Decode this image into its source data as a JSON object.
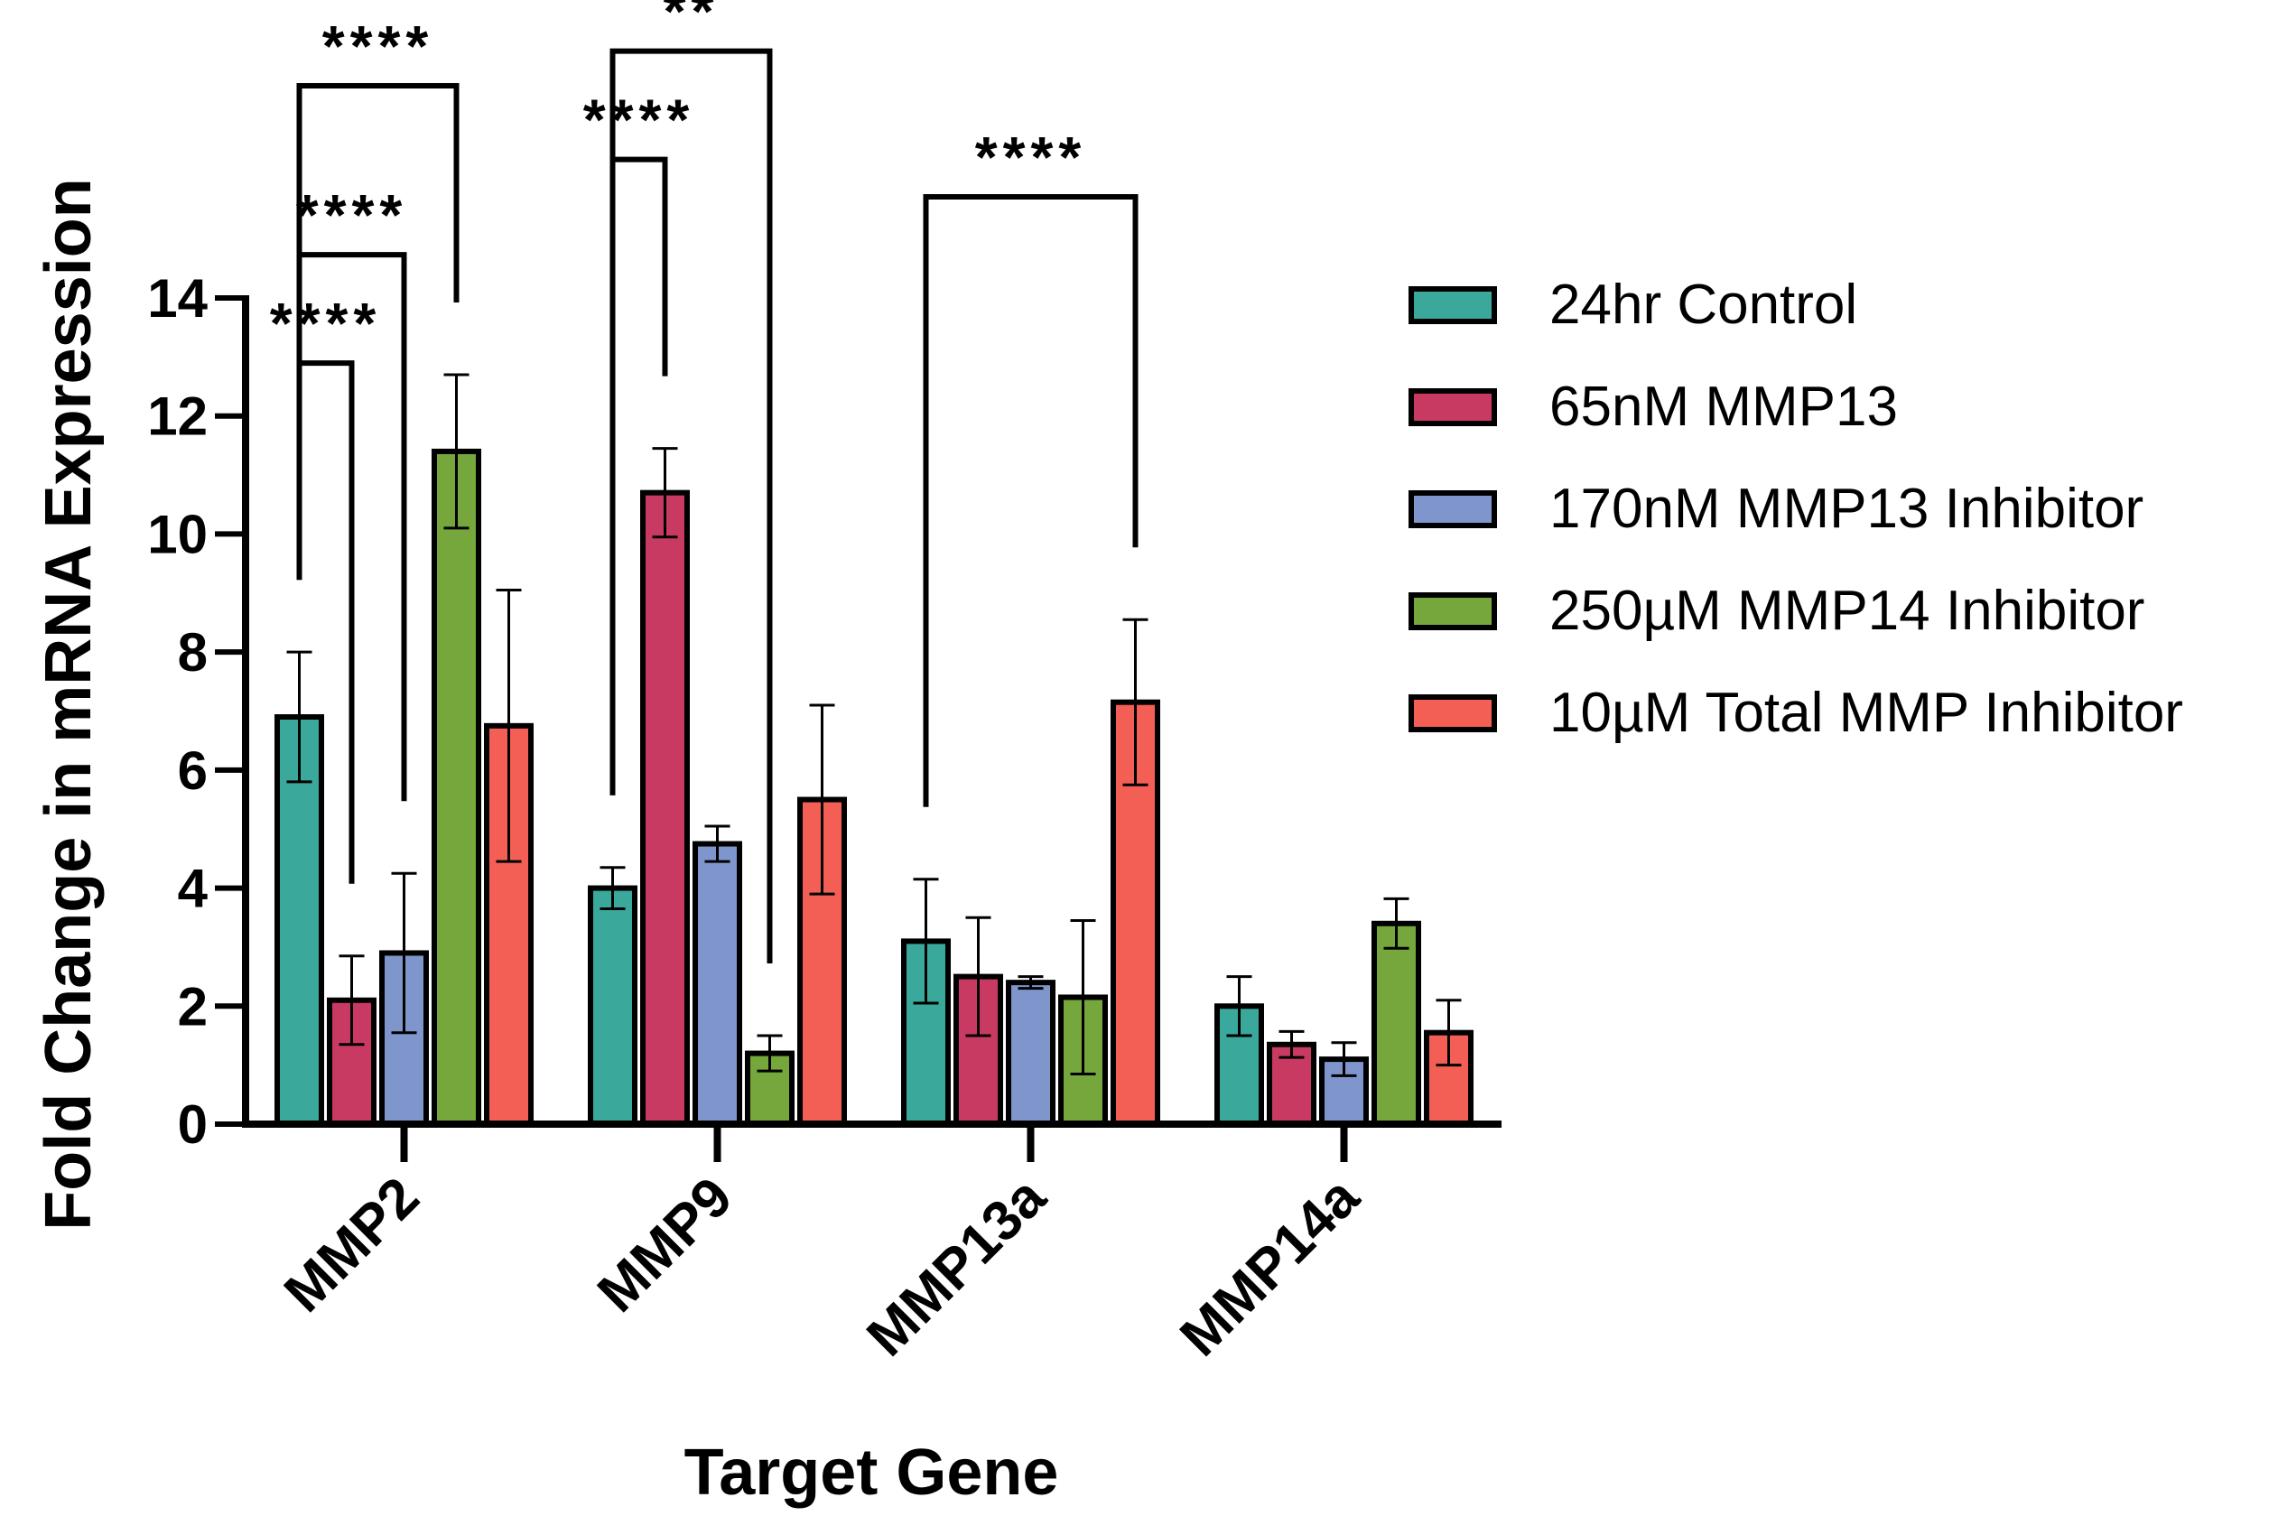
{
  "chart_data": {
    "type": "bar",
    "title": "",
    "xlabel": "Target Gene",
    "ylabel": "Fold Change in mRNA Expression",
    "ylim": [
      0,
      14
    ],
    "yticks": [
      "0",
      "2",
      "4",
      "6",
      "8",
      "10",
      "12",
      "14"
    ],
    "categories": [
      "MMP2",
      "MMP9",
      "MMP13a",
      "MMP14a"
    ],
    "legend_position": "right",
    "series": [
      {
        "name": "24hr Control",
        "color": "#3aa99b",
        "values": [
          6.9,
          4.0,
          3.1,
          2.0
        ],
        "errors": [
          1.1,
          0.35,
          1.05,
          0.5
        ]
      },
      {
        "name": "65nM MMP13",
        "color": "#c93a62",
        "values": [
          2.1,
          10.7,
          2.5,
          1.35
        ],
        "errors": [
          0.75,
          0.75,
          1.0,
          0.22
        ]
      },
      {
        "name": "170nM MMP13 Inhibitor",
        "color": "#7f96cc",
        "values": [
          2.9,
          4.75,
          2.4,
          1.1
        ],
        "errors": [
          1.35,
          0.3,
          0.1,
          0.28
        ]
      },
      {
        "name": "250µM MMP14 Inhibitor",
        "color": "#76a73c",
        "values": [
          11.4,
          1.2,
          2.15,
          3.4
        ],
        "errors": [
          1.3,
          0.3,
          1.3,
          0.42
        ]
      },
      {
        "name": "10µM Total MMP Inhibitor",
        "color": "#f45f55",
        "values": [
          6.75,
          5.5,
          7.15,
          1.55
        ],
        "errors": [
          2.3,
          1.6,
          1.4,
          0.55
        ]
      }
    ],
    "significance": [
      {
        "category": 0,
        "from": 0,
        "to": 1,
        "label": "****"
      },
      {
        "category": 0,
        "from": 0,
        "to": 2,
        "label": "****"
      },
      {
        "category": 0,
        "from": 0,
        "to": 3,
        "label": "****"
      },
      {
        "category": 1,
        "from": 0,
        "to": 1,
        "label": "****"
      },
      {
        "category": 1,
        "from": 0,
        "to": 3,
        "label": "**"
      },
      {
        "category": 2,
        "from": 0,
        "to": 4,
        "label": "****"
      }
    ]
  }
}
